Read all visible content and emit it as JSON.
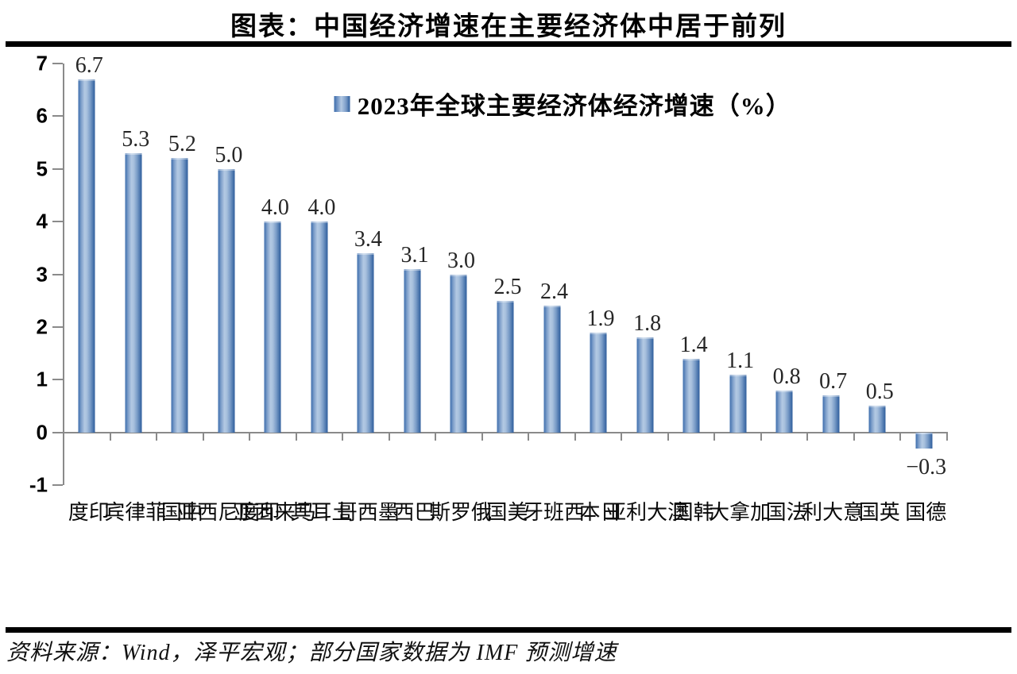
{
  "title": "图表：中国经济增速在主要经济体中居于前列",
  "legend": {
    "label": "2023年全球主要经济体经济增速（%）"
  },
  "source_note": "资料来源：Wind，泽平宏观；部分国家数据为 IMF 预测增速",
  "colors": {
    "bar_edge_dark": "#2e5d9c",
    "bar_edge_left": "#3d6dad",
    "bar_center_light": "#b3c9e3",
    "axis": "#8a8a8a",
    "rule": "#000000",
    "value_label": "#262626"
  },
  "chart_data": {
    "type": "bar",
    "title": "2023年全球主要经济体经济增速（%）",
    "categories": [
      "印度",
      "菲律宾",
      "中国",
      "印度尼西亚",
      "马来西亚",
      "土耳其",
      "墨西哥",
      "巴西",
      "俄罗斯",
      "美国",
      "西班牙",
      "日本",
      "澳大利亚",
      "韩国",
      "加拿大",
      "法国",
      "意大利",
      "英国",
      "德国"
    ],
    "values": [
      6.7,
      5.3,
      5.2,
      5.0,
      4.0,
      4.0,
      3.4,
      3.1,
      3.0,
      2.5,
      2.4,
      1.9,
      1.8,
      1.4,
      1.1,
      0.8,
      0.7,
      0.5,
      -0.3
    ],
    "value_labels": [
      "6.7",
      "5.3",
      "5.2",
      "5.0",
      "4.0",
      "4.0",
      "3.4",
      "3.1",
      "3.0",
      "2.5",
      "2.4",
      "1.9",
      "1.8",
      "1.4",
      "1.1",
      "0.8",
      "0.7",
      "0.5",
      "−0.3"
    ],
    "ylim": [
      -1,
      7
    ],
    "yticks": [
      7,
      6,
      5,
      4,
      3,
      2,
      1,
      0,
      -1
    ],
    "ytick_labels": [
      "7",
      "6",
      "5",
      "4",
      "3",
      "2",
      "1",
      "0",
      "-1"
    ],
    "grid": false,
    "legend_position": "top-center"
  }
}
